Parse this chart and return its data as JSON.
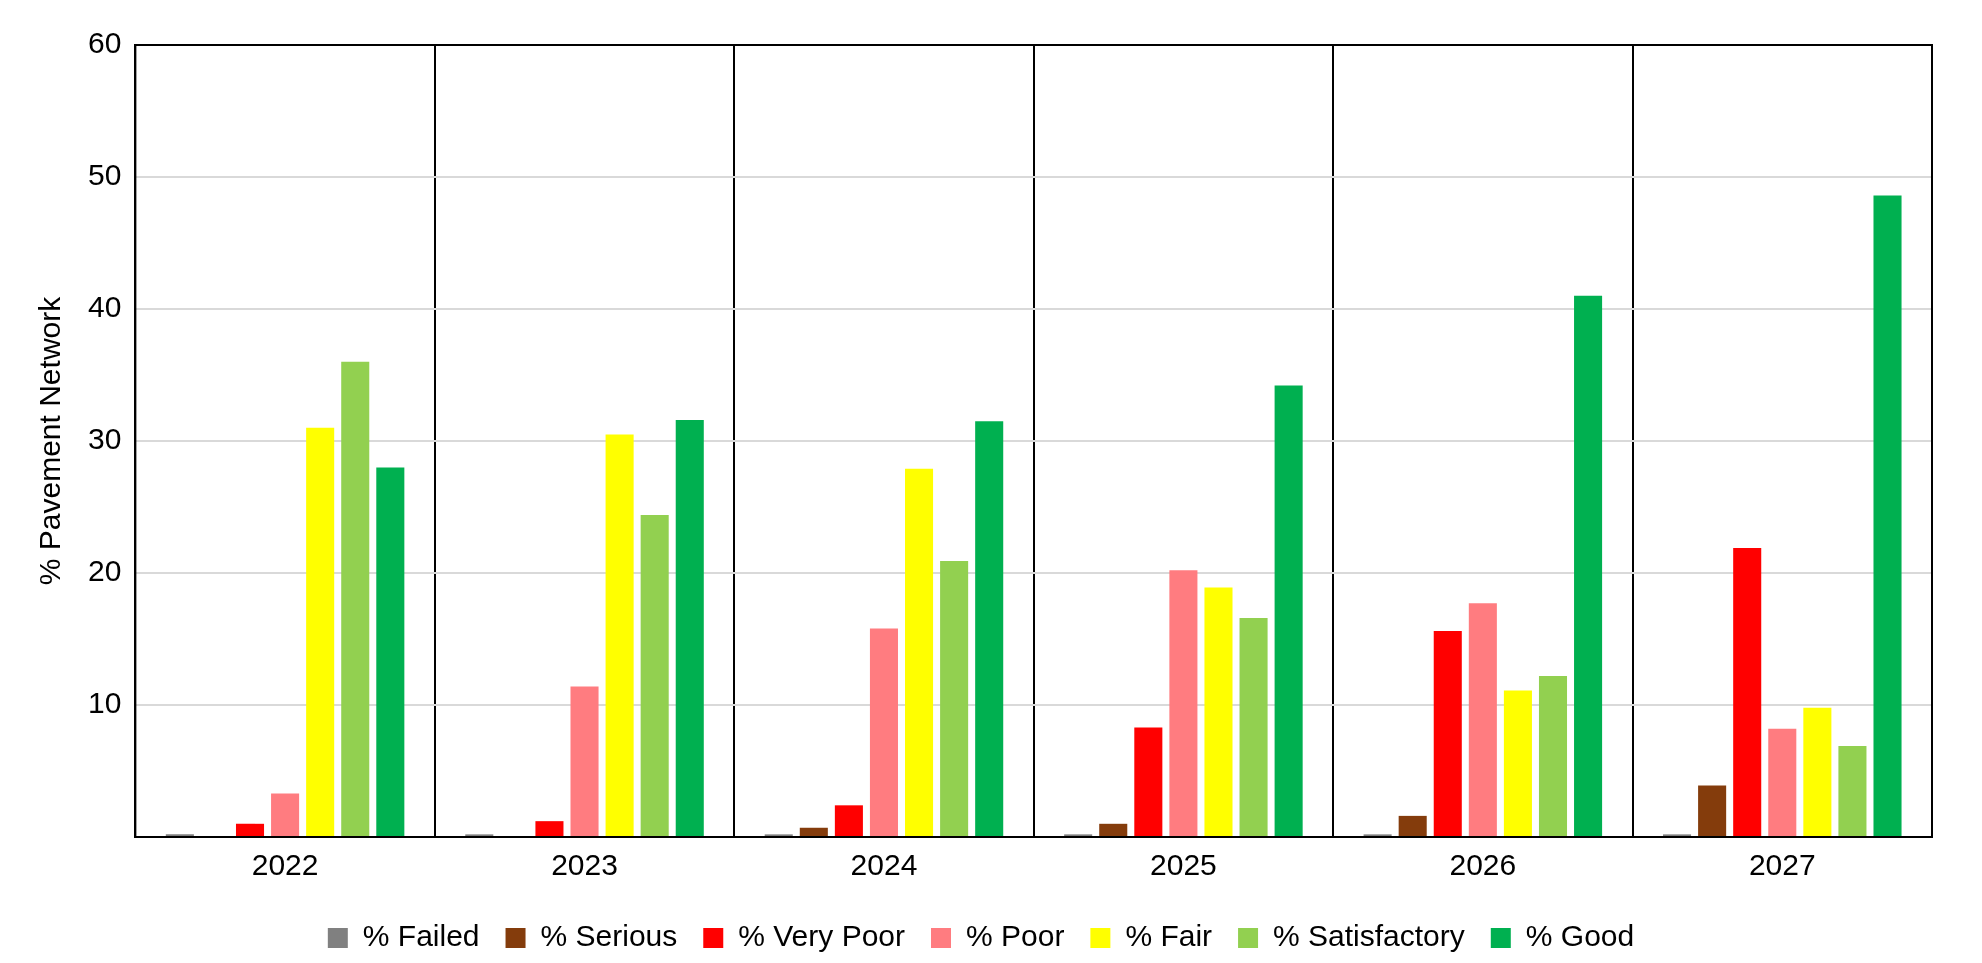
{
  "chart_data": {
    "type": "bar",
    "ylabel": "% Pavement Network",
    "categories": [
      "2022",
      "2023",
      "2024",
      "2025",
      "2026",
      "2027"
    ],
    "series": [
      {
        "name": "% Failed",
        "color": "#808080",
        "values": [
          0.2,
          0.2,
          0.2,
          0.2,
          0.2,
          0.2
        ]
      },
      {
        "name": "% Serious",
        "color": "#843c0c",
        "values": [
          0,
          null,
          0.7,
          1.0,
          1.6,
          3.9
        ]
      },
      {
        "name": "% Very Poor",
        "color": "#ff0000",
        "values": [
          1.0,
          1.2,
          2.4,
          8.3,
          15.6,
          21.9
        ]
      },
      {
        "name": "% Poor",
        "color": "#ff7c80",
        "values": [
          3.3,
          11.4,
          15.8,
          20.2,
          17.7,
          8.2
        ]
      },
      {
        "name": "% Fair",
        "color": "#ffff00",
        "values": [
          31.0,
          30.5,
          27.9,
          18.9,
          11.1,
          9.8
        ]
      },
      {
        "name": "% Satisfactory",
        "color": "#92d050",
        "values": [
          36.0,
          24.4,
          20.9,
          16.6,
          12.2,
          6.9
        ]
      },
      {
        "name": "% Good",
        "color": "#00b050",
        "values": [
          28.0,
          31.6,
          31.5,
          34.2,
          41.0,
          48.6
        ]
      }
    ],
    "ylim": [
      0,
      60
    ],
    "yticks": [
      {
        "value": 0,
        "label": null
      },
      10,
      20,
      30,
      40,
      50,
      60
    ],
    "grid": true,
    "legend": "bottom"
  }
}
